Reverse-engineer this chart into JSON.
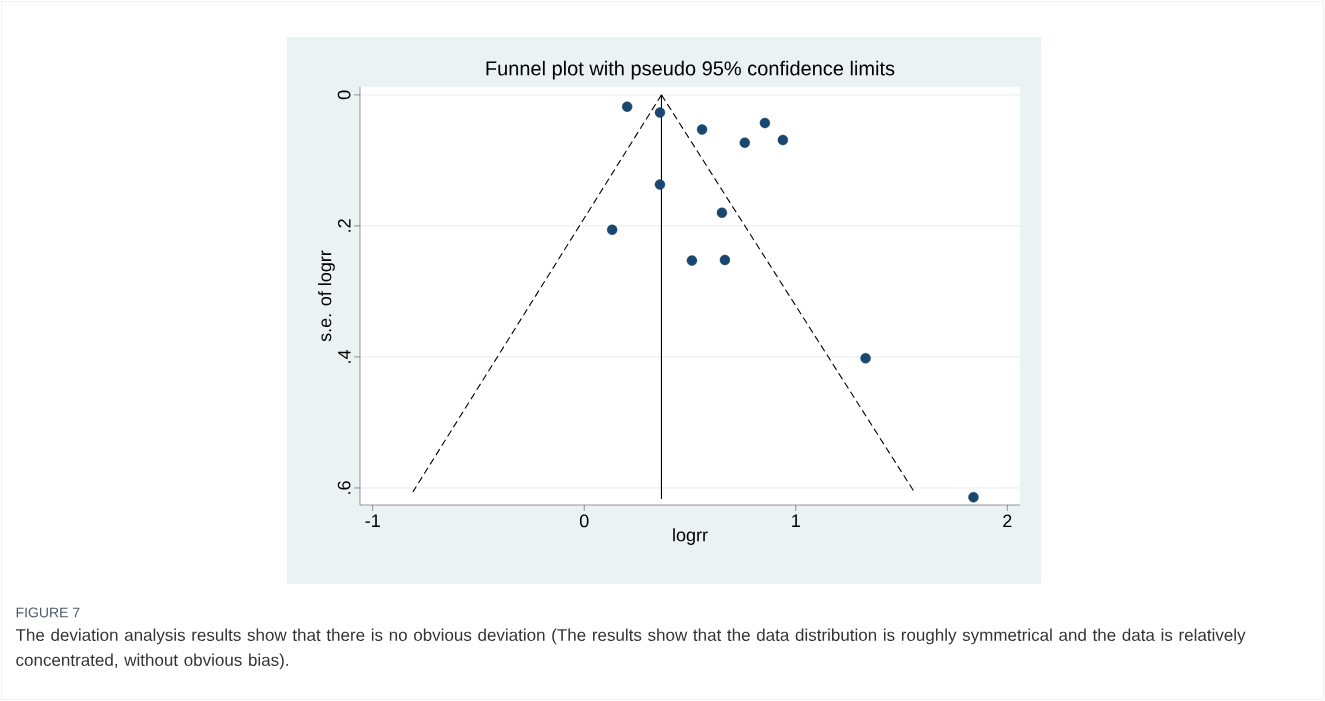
{
  "chart_data": {
    "type": "scatter",
    "title": "Funnel plot with pseudo 95% confidence limits",
    "xlabel": "logrr",
    "ylabel": "s.e. of logrr",
    "xlim": [
      -1.06,
      2.06
    ],
    "ylim": [
      0.626,
      -0.012
    ],
    "xticks": [
      -1,
      0,
      1,
      2
    ],
    "yticks": [
      {
        "value": 0,
        "label": "0"
      },
      {
        "value": 0.2,
        "label": ".2"
      },
      {
        "value": 0.4,
        "label": ".4"
      },
      {
        "value": 0.6,
        "label": ".6"
      }
    ],
    "grid": "y",
    "series": [
      {
        "color": "#1a476f",
        "marker": "circle",
        "x": [
          0.203,
          0.358,
          0.557,
          0.854,
          0.759,
          0.939,
          0.358,
          0.651,
          0.132,
          0.509,
          0.665,
          1.33,
          1.84
        ],
        "values": [
          0.018,
          0.027,
          0.053,
          0.043,
          0.073,
          0.069,
          0.137,
          0.18,
          0.206,
          0.253,
          0.252,
          0.402,
          0.614
        ]
      },
      {
        "type": "line",
        "color": "#000000",
        "line_style": "dashed",
        "marker": "none",
        "x": [
          0.365,
          -0.81
        ],
        "values": [
          0,
          0.606
        ]
      },
      {
        "type": "line",
        "color": "#000000",
        "line_style": "dashed",
        "marker": "none",
        "x": [
          0.365,
          1.56
        ],
        "values": [
          0,
          0.606
        ]
      },
      {
        "type": "line",
        "color": "#000000",
        "line_style": "solid",
        "marker": "none",
        "x": [
          0.365,
          0.365
        ],
        "values": [
          0,
          0.617
        ]
      }
    ],
    "annotations": [
      "FIGURE 7",
      "The deviation analysis results show that there is no obvious deviation (The results show that the data distribution is roughly symmetrical and the data is relatively concentrated, without obvious bias)."
    ]
  }
}
